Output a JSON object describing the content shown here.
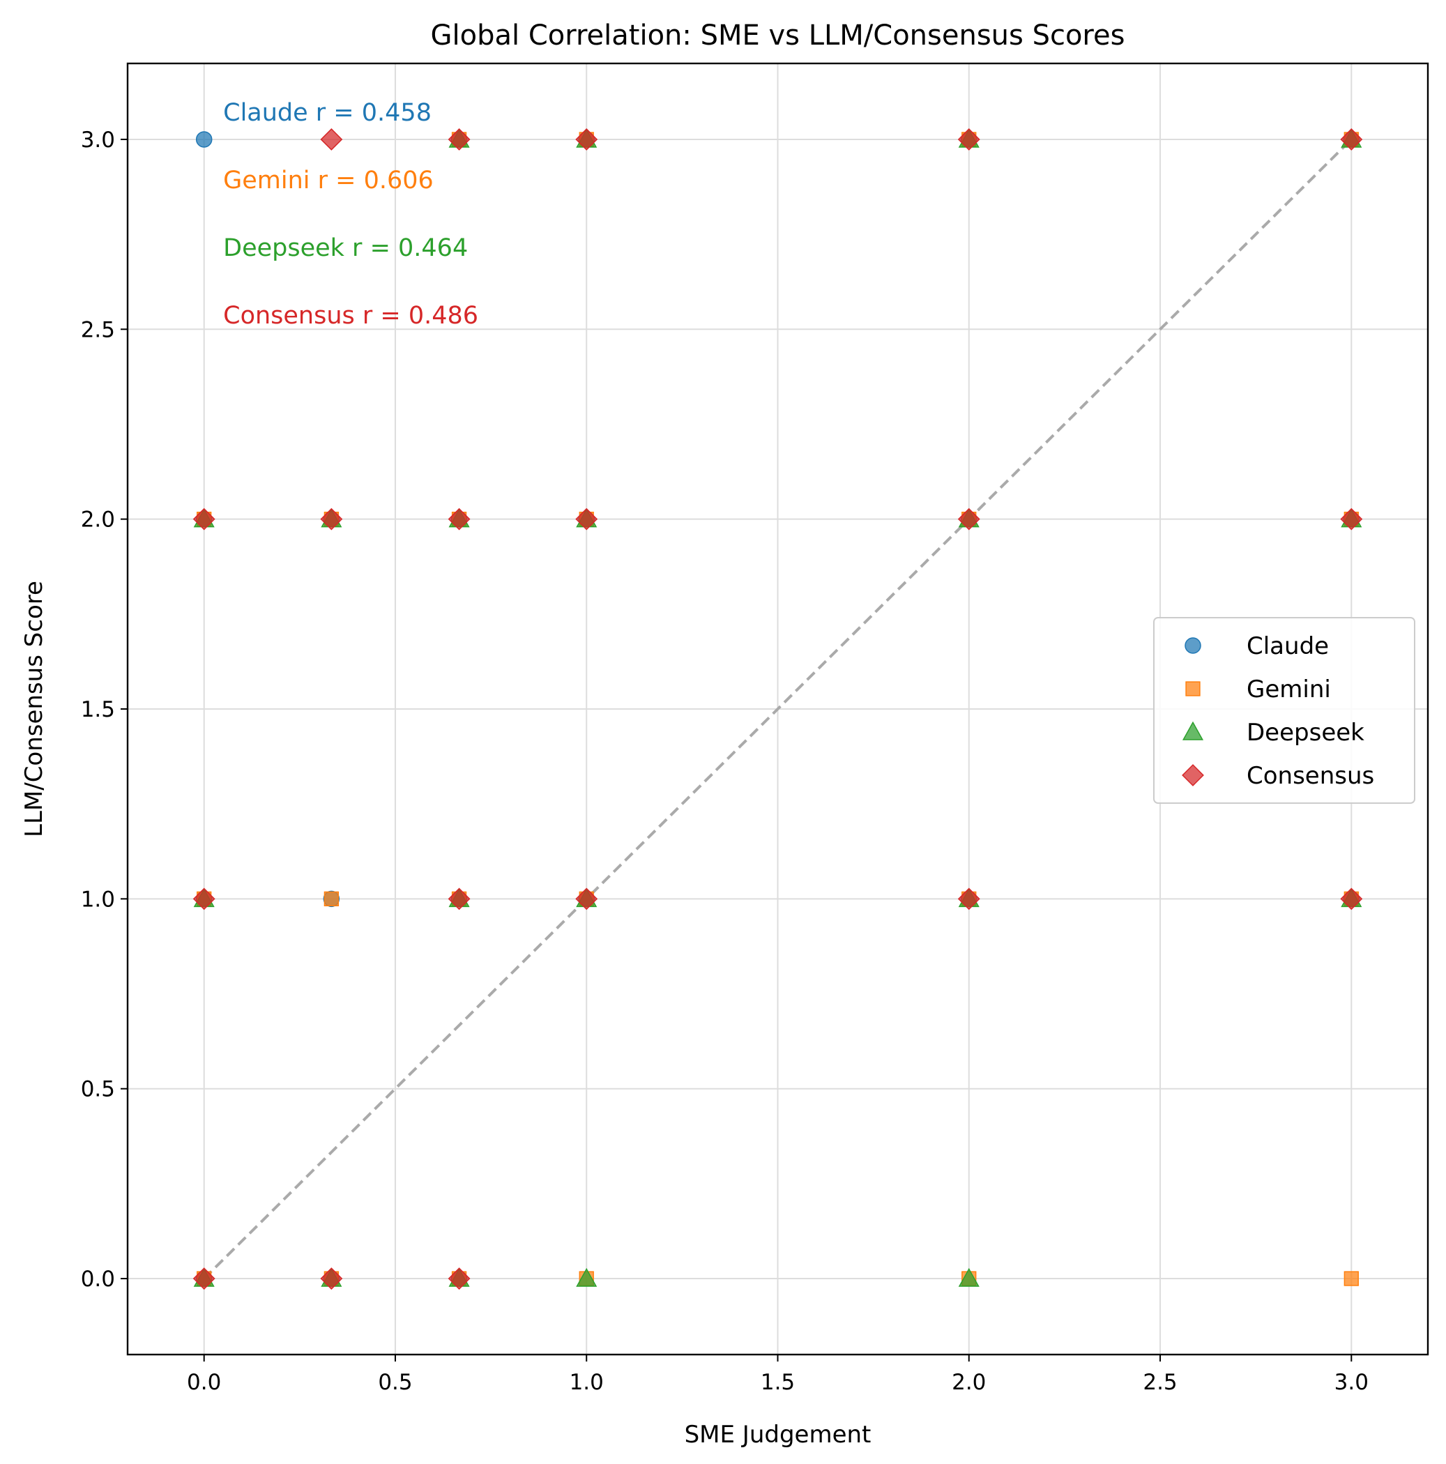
{
  "chart_data": {
    "type": "scatter",
    "title": "Global Correlation: SME vs LLM/Consensus Scores",
    "xlabel": "SME Judgement",
    "ylabel": "LLM/Consensus Score",
    "xlim": [
      -0.2,
      3.2
    ],
    "ylim": [
      -0.2,
      3.2
    ],
    "xticks": [
      0.0,
      0.5,
      1.0,
      1.5,
      2.0,
      2.5,
      3.0
    ],
    "xtick_labels": [
      "0.0",
      "0.5",
      "1.0",
      "1.5",
      "2.0",
      "2.5",
      "3.0"
    ],
    "yticks": [
      0.0,
      0.5,
      1.0,
      1.5,
      2.0,
      2.5,
      3.0
    ],
    "ytick_labels": [
      "0.0",
      "0.5",
      "1.0",
      "1.5",
      "2.0",
      "2.5",
      "3.0"
    ],
    "grid": true,
    "legend_position": "center-right",
    "reference_line": {
      "style": "dashed",
      "color": "#aaaaaa",
      "from": [
        0,
        0
      ],
      "to": [
        3,
        3
      ]
    },
    "series": [
      {
        "name": "Claude",
        "marker": "circle",
        "color": "#1f77b4",
        "points": [
          [
            0,
            3
          ],
          [
            0,
            2
          ],
          [
            0,
            1
          ],
          [
            0,
            0
          ],
          [
            0.333,
            2
          ],
          [
            0.333,
            1
          ],
          [
            0.333,
            0
          ],
          [
            0.667,
            3
          ],
          [
            0.667,
            2
          ],
          [
            0.667,
            1
          ],
          [
            0.667,
            0
          ],
          [
            1,
            3
          ],
          [
            1,
            2
          ],
          [
            1,
            1
          ],
          [
            2,
            3
          ],
          [
            2,
            2
          ],
          [
            2,
            1
          ],
          [
            3,
            3
          ],
          [
            3,
            2
          ],
          [
            3,
            1
          ]
        ]
      },
      {
        "name": "Gemini",
        "marker": "square",
        "color": "#ff7f0e",
        "points": [
          [
            0,
            2
          ],
          [
            0,
            1
          ],
          [
            0,
            0
          ],
          [
            0.333,
            2
          ],
          [
            0.333,
            1
          ],
          [
            0.333,
            0
          ],
          [
            0.667,
            3
          ],
          [
            0.667,
            2
          ],
          [
            0.667,
            1
          ],
          [
            0.667,
            0
          ],
          [
            1,
            3
          ],
          [
            1,
            2
          ],
          [
            1,
            1
          ],
          [
            1,
            0
          ],
          [
            2,
            3
          ],
          [
            2,
            2
          ],
          [
            2,
            1
          ],
          [
            2,
            0
          ],
          [
            3,
            3
          ],
          [
            3,
            2
          ],
          [
            3,
            1
          ],
          [
            3,
            0
          ]
        ]
      },
      {
        "name": "Deepseek",
        "marker": "triangle",
        "color": "#2ca02c",
        "points": [
          [
            0,
            2
          ],
          [
            0,
            1
          ],
          [
            0,
            0
          ],
          [
            0.333,
            2
          ],
          [
            0.333,
            0
          ],
          [
            0.667,
            3
          ],
          [
            0.667,
            2
          ],
          [
            0.667,
            1
          ],
          [
            0.667,
            0
          ],
          [
            1,
            3
          ],
          [
            1,
            2
          ],
          [
            1,
            1
          ],
          [
            1,
            0
          ],
          [
            2,
            3
          ],
          [
            2,
            2
          ],
          [
            2,
            1
          ],
          [
            2,
            0
          ],
          [
            3,
            3
          ],
          [
            3,
            2
          ],
          [
            3,
            1
          ]
        ]
      },
      {
        "name": "Consensus",
        "marker": "diamond",
        "color": "#d62728",
        "points": [
          [
            0,
            2
          ],
          [
            0,
            1
          ],
          [
            0,
            0
          ],
          [
            0.333,
            3
          ],
          [
            0.333,
            2
          ],
          [
            0.333,
            0
          ],
          [
            0.667,
            3
          ],
          [
            0.667,
            2
          ],
          [
            0.667,
            1
          ],
          [
            0.667,
            0
          ],
          [
            1,
            3
          ],
          [
            1,
            2
          ],
          [
            1,
            1
          ],
          [
            2,
            3
          ],
          [
            2,
            2
          ],
          [
            2,
            1
          ],
          [
            3,
            3
          ],
          [
            3,
            2
          ],
          [
            3,
            1
          ]
        ]
      }
    ],
    "annotations": [
      {
        "text": "Claude r = 0.458",
        "color": "#1f77b4"
      },
      {
        "text": "Gemini r = 0.606",
        "color": "#ff7f0e"
      },
      {
        "text": "Deepseek r = 0.464",
        "color": "#2ca02c"
      },
      {
        "text": "Consensus r = 0.486",
        "color": "#d62728"
      }
    ]
  }
}
